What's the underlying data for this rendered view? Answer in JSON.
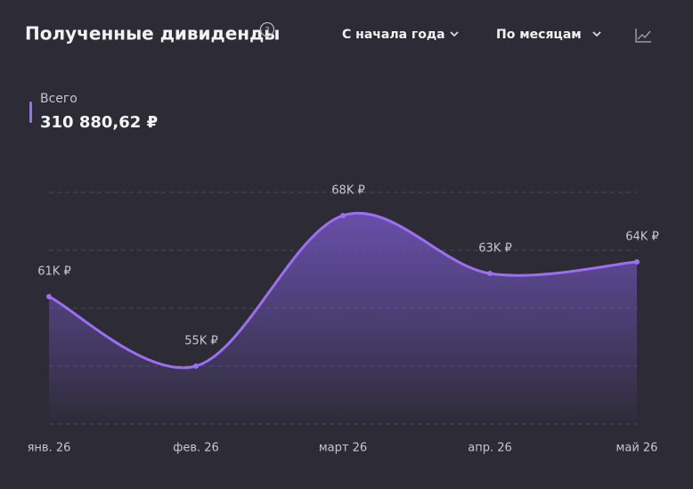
{
  "header": {
    "title": "Полученные дивиденды",
    "period": "С начала года",
    "grouping": "По месяцам"
  },
  "summary": {
    "label": "Всего",
    "total": "310 880,62 ₽"
  },
  "chart_data": {
    "type": "line",
    "categories": [
      "янв. 26",
      "фев. 26",
      "март 26",
      "апр. 26",
      "май 26"
    ],
    "series": [
      {
        "name": "Всего",
        "color": "#9d6ef2",
        "values": [
          61000,
          55000,
          68000,
          63000,
          64000
        ],
        "value_labels": [
          "61K ₽",
          "55K ₽",
          "68K ₽",
          "63K ₽",
          "64K ₽"
        ]
      }
    ],
    "ylim": [
      50000,
      70000
    ]
  }
}
